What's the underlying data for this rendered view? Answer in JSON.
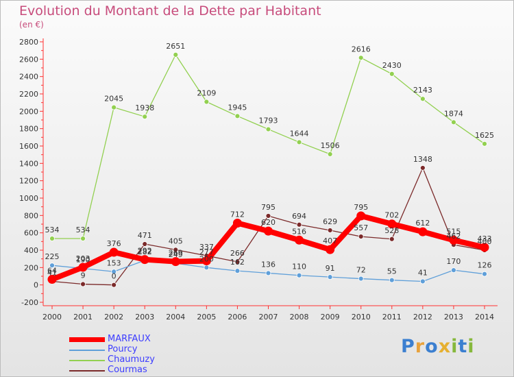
{
  "title": "Evolution du Montant de la Dette par Habitant",
  "subtitle": "(en €)",
  "logo": {
    "letters": [
      "P",
      "r",
      "o",
      "x",
      "i",
      "t",
      "i"
    ],
    "colors": [
      "#3b7fd0",
      "#e8a23c",
      "#3b7fd0",
      "#e6b030",
      "#86b83c",
      "#3b7fd0",
      "#86b83c"
    ]
  },
  "chart_data": {
    "type": "line",
    "x": [
      2000,
      2001,
      2002,
      2003,
      2004,
      2005,
      2006,
      2007,
      2008,
      2009,
      2010,
      2011,
      2012,
      2013,
      2014
    ],
    "ylim": [
      -200,
      2800
    ],
    "yticks": [
      -200,
      0,
      200,
      400,
      600,
      800,
      1000,
      1200,
      1400,
      1600,
      1800,
      2000,
      2200,
      2400,
      2600,
      2800
    ],
    "grid": false,
    "legend": "bottom-left",
    "series": [
      {
        "name": "MARFAUX",
        "color": "#ff0000",
        "values": [
          64,
          203,
          376,
          292,
          269,
          277,
          712,
          620,
          516,
          407,
          795,
          702,
          612,
          515,
          433
        ]
      },
      {
        "name": "Pourcy",
        "color": "#5f9fd9",
        "values": [
          225,
          190,
          153,
          282,
          249,
          200,
          162,
          136,
          110,
          91,
          72,
          55,
          41,
          170,
          126
        ]
      },
      {
        "name": "Chaumuzy",
        "color": "#92d050",
        "values": [
          534,
          534,
          2045,
          1938,
          2651,
          2109,
          1945,
          1793,
          1644,
          1506,
          2616,
          2430,
          2143,
          1874,
          1625
        ]
      },
      {
        "name": "Courmas",
        "color": "#7b2a2a",
        "values": [
          41,
          9,
          0,
          471,
          405,
          337,
          266,
          795,
          694,
          629,
          557,
          528,
          1348,
          462,
          400
        ]
      }
    ]
  }
}
